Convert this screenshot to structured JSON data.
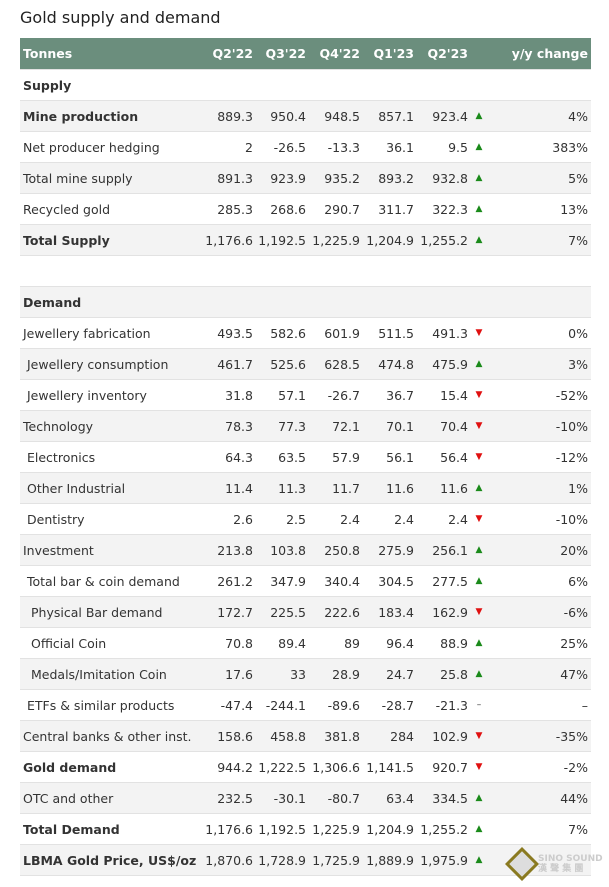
{
  "title": "Gold supply and demand",
  "header": [
    "Tonnes",
    "Q2'22",
    "Q3'22",
    "Q4'22",
    "Q1'23",
    "Q2'23",
    "y/y change"
  ],
  "rows": [
    {
      "label": "Supply",
      "section": true
    },
    {
      "label": "Mine production",
      "bold": true,
      "v": [
        "889.3",
        "950.4",
        "948.5",
        "857.1",
        "923.4"
      ],
      "dir": "up",
      "yy": "4%"
    },
    {
      "label": "Net producer hedging",
      "v": [
        "2",
        "-26.5",
        "-13.3",
        "36.1",
        "9.5"
      ],
      "dir": "up",
      "yy": "383%"
    },
    {
      "label": "Total mine supply",
      "v": [
        "891.3",
        "923.9",
        "935.2",
        "893.2",
        "932.8"
      ],
      "dir": "up",
      "yy": "5%"
    },
    {
      "label": "Recycled gold",
      "v": [
        "285.3",
        "268.6",
        "290.7",
        "311.7",
        "322.3"
      ],
      "dir": "up",
      "yy": "13%"
    },
    {
      "label": "Total Supply",
      "bold": true,
      "v": [
        "1,176.6",
        "1,192.5",
        "1,225.9",
        "1,204.9",
        "1,255.2"
      ],
      "dir": "up",
      "yy": "7%"
    },
    {
      "label": "",
      "blank": true
    },
    {
      "label": "Demand",
      "section": true
    },
    {
      "label": "Jewellery fabrication",
      "v": [
        "493.5",
        "582.6",
        "601.9",
        "511.5",
        "491.3"
      ],
      "dir": "down",
      "yy": "0%"
    },
    {
      "label": "Jewellery consumption",
      "indent": 1,
      "v": [
        "461.7",
        "525.6",
        "628.5",
        "474.8",
        "475.9"
      ],
      "dir": "up",
      "yy": "3%"
    },
    {
      "label": "Jewellery inventory",
      "indent": 1,
      "v": [
        "31.8",
        "57.1",
        "-26.7",
        "36.7",
        "15.4"
      ],
      "dir": "down",
      "yy": "-52%"
    },
    {
      "label": "Technology",
      "v": [
        "78.3",
        "77.3",
        "72.1",
        "70.1",
        "70.4"
      ],
      "dir": "down",
      "yy": "-10%"
    },
    {
      "label": "Electronics",
      "indent": 1,
      "v": [
        "64.3",
        "63.5",
        "57.9",
        "56.1",
        "56.4"
      ],
      "dir": "down",
      "yy": "-12%"
    },
    {
      "label": "Other Industrial",
      "indent": 1,
      "v": [
        "11.4",
        "11.3",
        "11.7",
        "11.6",
        "11.6"
      ],
      "dir": "up",
      "yy": "1%"
    },
    {
      "label": "Dentistry",
      "indent": 1,
      "v": [
        "2.6",
        "2.5",
        "2.4",
        "2.4",
        "2.4"
      ],
      "dir": "down",
      "yy": "-10%"
    },
    {
      "label": "Investment",
      "v": [
        "213.8",
        "103.8",
        "250.8",
        "275.9",
        "256.1"
      ],
      "dir": "up",
      "yy": "20%"
    },
    {
      "label": "Total bar & coin demand",
      "indent": 1,
      "v": [
        "261.2",
        "347.9",
        "340.4",
        "304.5",
        "277.5"
      ],
      "dir": "up",
      "yy": "6%"
    },
    {
      "label": "Physical Bar demand",
      "indent": 2,
      "v": [
        "172.7",
        "225.5",
        "222.6",
        "183.4",
        "162.9"
      ],
      "dir": "down",
      "yy": "-6%"
    },
    {
      "label": "Official Coin",
      "indent": 2,
      "v": [
        "70.8",
        "89.4",
        "89",
        "96.4",
        "88.9"
      ],
      "dir": "up",
      "yy": "25%"
    },
    {
      "label": "Medals/Imitation Coin",
      "indent": 2,
      "v": [
        "17.6",
        "33",
        "28.9",
        "24.7",
        "25.8"
      ],
      "dir": "up",
      "yy": "47%"
    },
    {
      "label": "ETFs & similar products",
      "indent": 1,
      "v": [
        "-47.4",
        "-244.1",
        "-89.6",
        "-28.7",
        "-21.3"
      ],
      "dir": "none",
      "yy": "–"
    },
    {
      "label": "Central banks & other inst.",
      "v": [
        "158.6",
        "458.8",
        "381.8",
        "284",
        "102.9"
      ],
      "dir": "down",
      "yy": "-35%"
    },
    {
      "label": "Gold demand",
      "bold": true,
      "v": [
        "944.2",
        "1,222.5",
        "1,306.6",
        "1,141.5",
        "920.7"
      ],
      "dir": "down",
      "yy": "-2%"
    },
    {
      "label": "OTC and other",
      "v": [
        "232.5",
        "-30.1",
        "-80.7",
        "63.4",
        "334.5"
      ],
      "dir": "up",
      "yy": "44%"
    },
    {
      "label": "Total Demand",
      "bold": true,
      "v": [
        "1,176.6",
        "1,192.5",
        "1,225.9",
        "1,204.9",
        "1,255.2"
      ],
      "dir": "up",
      "yy": "7%"
    },
    {
      "label": "LBMA Gold Price, US$/oz",
      "bold": true,
      "v": [
        "1,870.6",
        "1,728.9",
        "1,725.9",
        "1,889.9",
        "1,975.9"
      ],
      "dir": "up",
      "yy": ""
    }
  ],
  "watermark": {
    "line1": "SINO SOUND",
    "line2": "漢 聲 集 團"
  }
}
